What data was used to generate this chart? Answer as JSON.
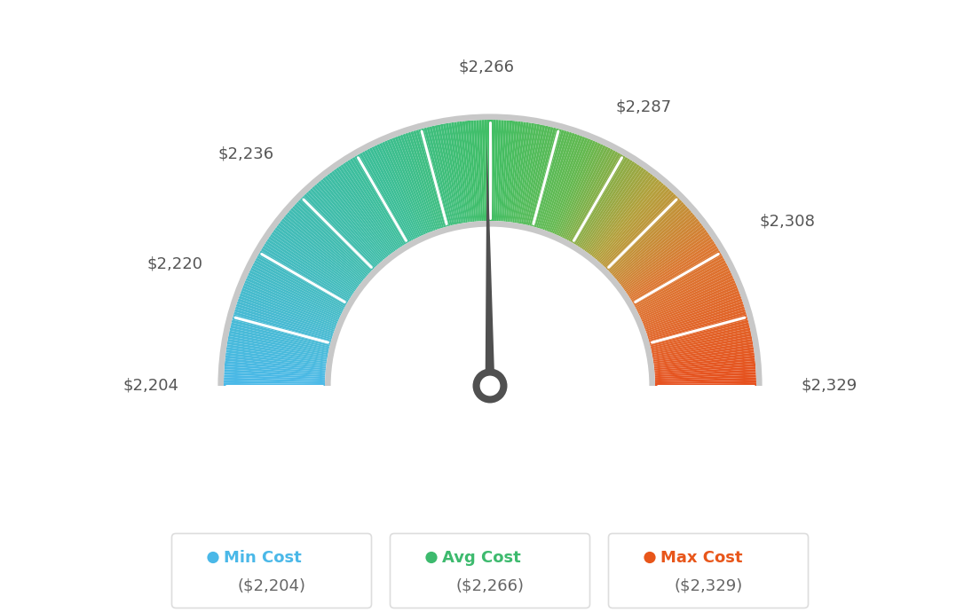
{
  "min_val": 2204,
  "avg_val": 2266,
  "max_val": 2329,
  "tick_labels": [
    "$2,204",
    "$2,220",
    "$2,236",
    "$2,266",
    "$2,287",
    "$2,308",
    "$2,329"
  ],
  "tick_values": [
    2204,
    2220,
    2236,
    2266,
    2287,
    2308,
    2329
  ],
  "legend": [
    {
      "label": "Min Cost",
      "value": "($2,204)",
      "color": "#4ab8e8"
    },
    {
      "label": "Avg Cost",
      "value": "($2,266)",
      "color": "#3dba6e"
    },
    {
      "label": "Max Cost",
      "value": "($2,329)",
      "color": "#e8561a"
    }
  ],
  "needle_value": 2266,
  "bg_color": "#ffffff",
  "color_stops": [
    [
      0.0,
      [
        75,
        185,
        232
      ]
    ],
    [
      0.35,
      [
        60,
        190,
        150
      ]
    ],
    [
      0.5,
      [
        65,
        190,
        100
      ]
    ],
    [
      0.62,
      [
        100,
        185,
        80
      ]
    ],
    [
      0.72,
      [
        180,
        160,
        60
      ]
    ],
    [
      0.82,
      [
        220,
        120,
        50
      ]
    ],
    [
      1.0,
      [
        230,
        80,
        30
      ]
    ]
  ]
}
